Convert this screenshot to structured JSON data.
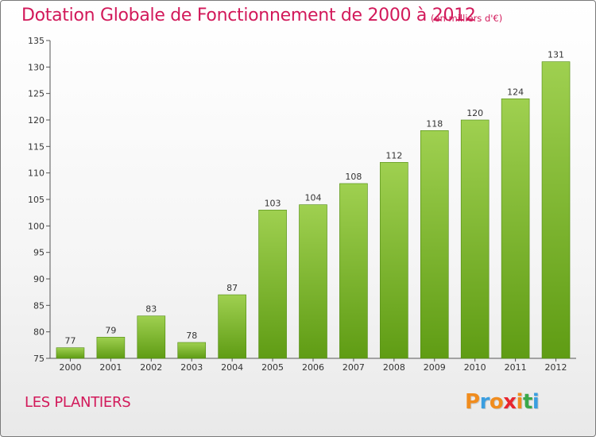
{
  "header": {
    "title": "Dotation Globale de Fonctionnement de 2000 à 2012",
    "unit": "(en milliers d'€)"
  },
  "footer": {
    "commune": "LES PLANTIERS",
    "logo": [
      "P",
      "r",
      "o",
      "x",
      "i",
      "t",
      "i"
    ]
  },
  "colors": {
    "title": "#d2195a",
    "bar_top": "#9fd050",
    "bar_bottom": "#5f9c14",
    "logo": [
      "#f08c1e",
      "#3a9ee0",
      "#f08c1e",
      "#e8262f",
      "#f08c1e",
      "#3aa84a",
      "#3a9ee0"
    ]
  },
  "chart_data": {
    "type": "bar",
    "title": "Dotation Globale de Fonctionnement de 2000 à 2012",
    "xlabel": "",
    "ylabel": "(en milliers d'€)",
    "categories": [
      "2000",
      "2001",
      "2002",
      "2003",
      "2004",
      "2005",
      "2006",
      "2007",
      "2008",
      "2009",
      "2010",
      "2011",
      "2012"
    ],
    "values": [
      77,
      79,
      83,
      78,
      87,
      103,
      104,
      108,
      112,
      118,
      120,
      124,
      131
    ],
    "ylim": [
      75,
      135
    ],
    "yticks": [
      75,
      80,
      85,
      90,
      95,
      100,
      105,
      110,
      115,
      120,
      125,
      130,
      135
    ],
    "grid": false,
    "legend": "none"
  }
}
